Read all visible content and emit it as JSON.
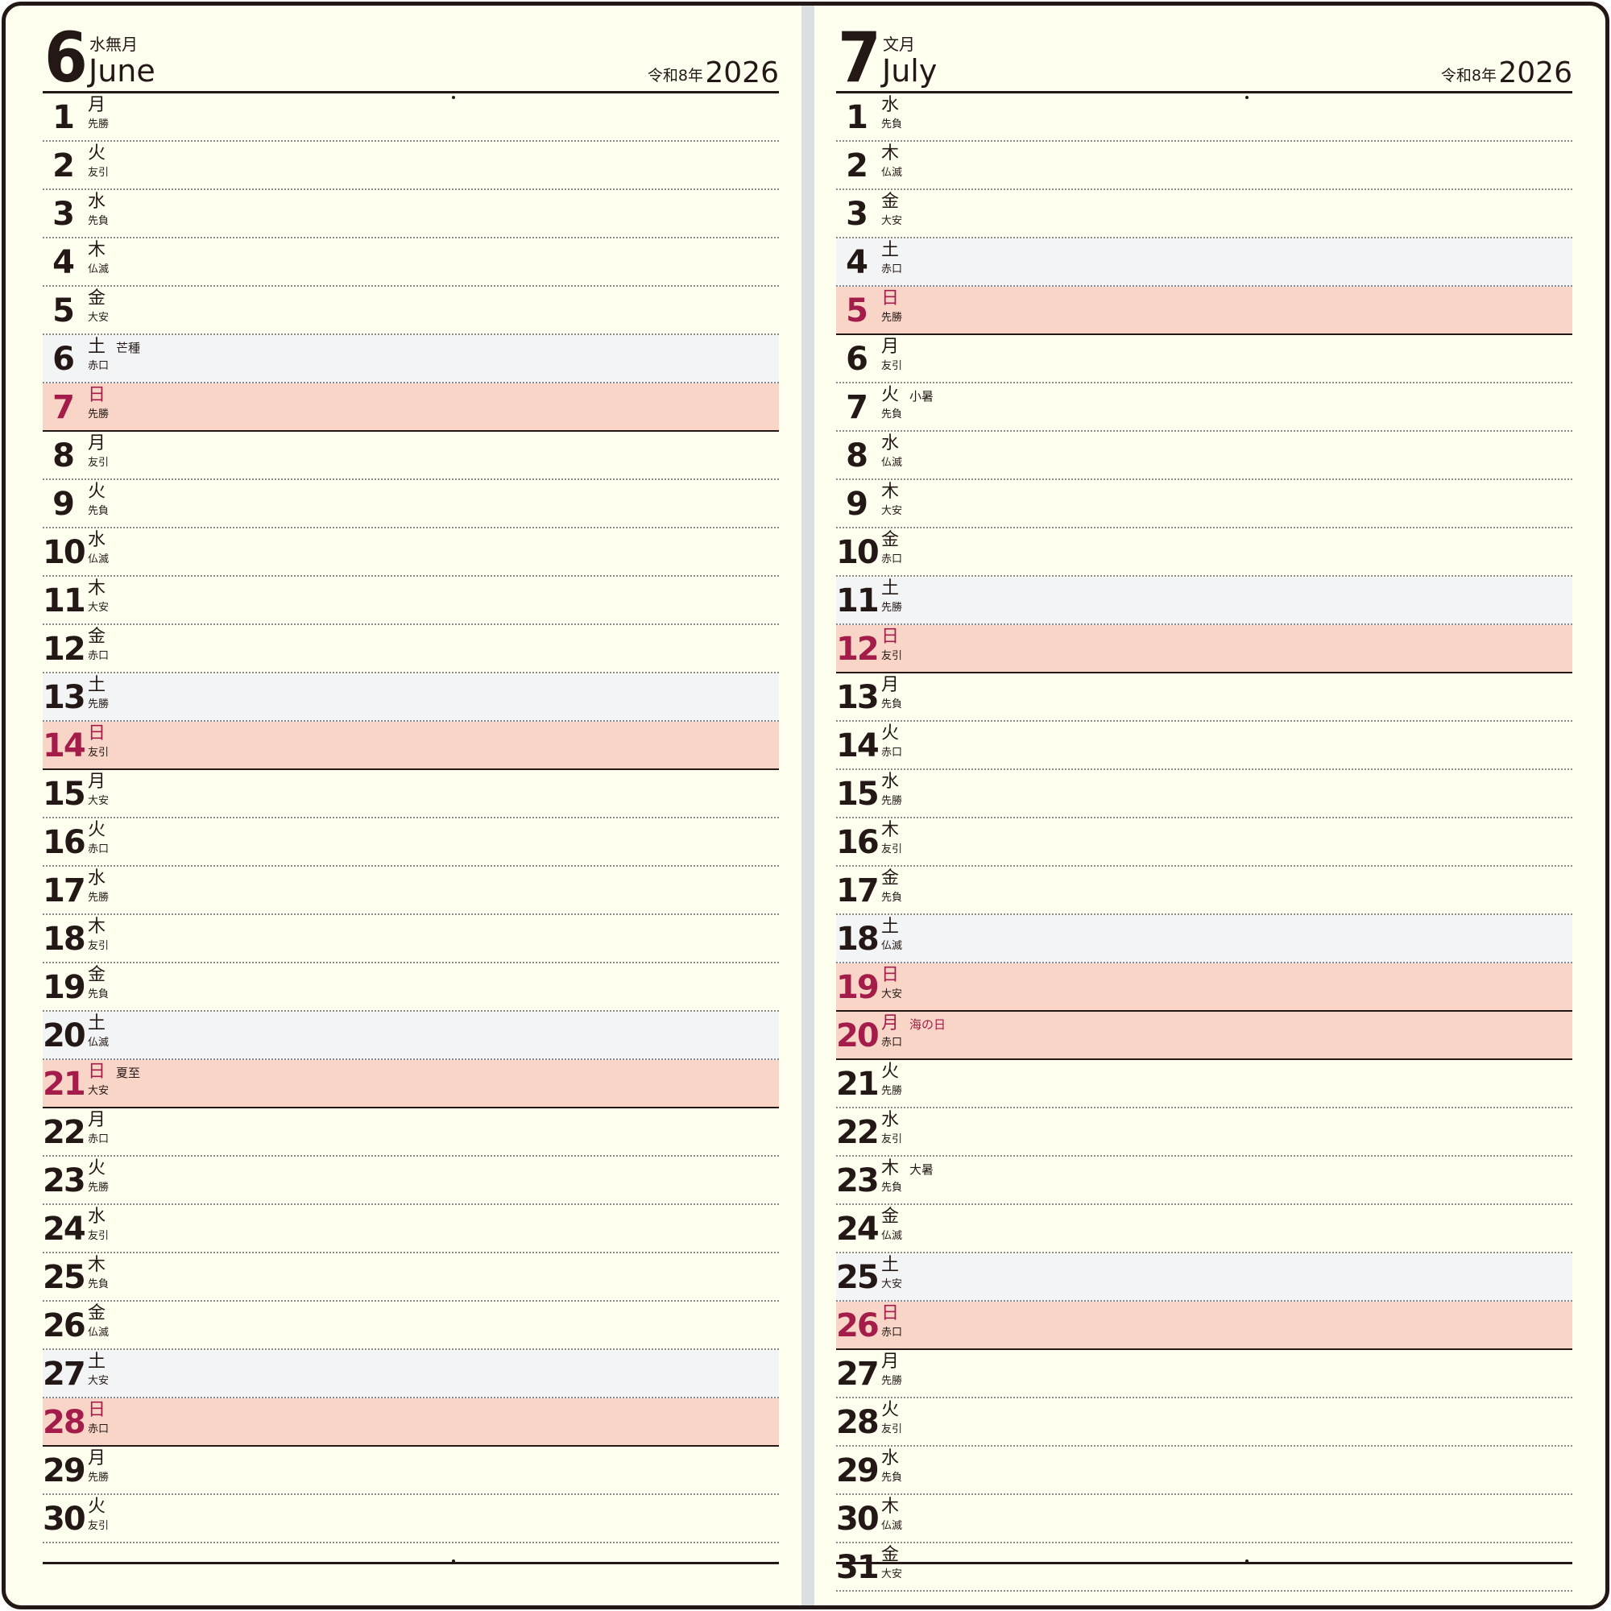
{
  "left": {
    "month_number": "6",
    "month_japanese": "水無月",
    "month_english": "June",
    "era_label": "令和8年",
    "year": "2026",
    "days": [
      {
        "day": "1",
        "weekday": "月",
        "rokuyo": "先勝"
      },
      {
        "day": "2",
        "weekday": "火",
        "rokuyo": "友引"
      },
      {
        "day": "3",
        "weekday": "水",
        "rokuyo": "先負"
      },
      {
        "day": "4",
        "weekday": "木",
        "rokuyo": "仏滅"
      },
      {
        "day": "5",
        "weekday": "金",
        "rokuyo": "大安"
      },
      {
        "day": "6",
        "weekday": "土",
        "rokuyo": "赤口",
        "note": "芒種"
      },
      {
        "day": "7",
        "weekday": "日",
        "rokuyo": "先勝"
      },
      {
        "day": "8",
        "weekday": "月",
        "rokuyo": "友引"
      },
      {
        "day": "9",
        "weekday": "火",
        "rokuyo": "先負"
      },
      {
        "day": "10",
        "weekday": "水",
        "rokuyo": "仏滅"
      },
      {
        "day": "11",
        "weekday": "木",
        "rokuyo": "大安"
      },
      {
        "day": "12",
        "weekday": "金",
        "rokuyo": "赤口"
      },
      {
        "day": "13",
        "weekday": "土",
        "rokuyo": "先勝"
      },
      {
        "day": "14",
        "weekday": "日",
        "rokuyo": "友引"
      },
      {
        "day": "15",
        "weekday": "月",
        "rokuyo": "大安"
      },
      {
        "day": "16",
        "weekday": "火",
        "rokuyo": "赤口"
      },
      {
        "day": "17",
        "weekday": "水",
        "rokuyo": "先勝"
      },
      {
        "day": "18",
        "weekday": "木",
        "rokuyo": "友引"
      },
      {
        "day": "19",
        "weekday": "金",
        "rokuyo": "先負"
      },
      {
        "day": "20",
        "weekday": "土",
        "rokuyo": "仏滅"
      },
      {
        "day": "21",
        "weekday": "日",
        "rokuyo": "大安",
        "note": "夏至"
      },
      {
        "day": "22",
        "weekday": "月",
        "rokuyo": "赤口"
      },
      {
        "day": "23",
        "weekday": "火",
        "rokuyo": "先勝"
      },
      {
        "day": "24",
        "weekday": "水",
        "rokuyo": "友引"
      },
      {
        "day": "25",
        "weekday": "木",
        "rokuyo": "先負"
      },
      {
        "day": "26",
        "weekday": "金",
        "rokuyo": "仏滅"
      },
      {
        "day": "27",
        "weekday": "土",
        "rokuyo": "大安"
      },
      {
        "day": "28",
        "weekday": "日",
        "rokuyo": "赤口"
      },
      {
        "day": "29",
        "weekday": "月",
        "rokuyo": "先勝"
      },
      {
        "day": "30",
        "weekday": "火",
        "rokuyo": "友引"
      }
    ]
  },
  "right": {
    "month_number": "7",
    "month_japanese": "文月",
    "month_english": "July",
    "era_label": "令和8年",
    "year": "2026",
    "days": [
      {
        "day": "1",
        "weekday": "水",
        "rokuyo": "先負"
      },
      {
        "day": "2",
        "weekday": "木",
        "rokuyo": "仏滅"
      },
      {
        "day": "3",
        "weekday": "金",
        "rokuyo": "大安"
      },
      {
        "day": "4",
        "weekday": "土",
        "rokuyo": "赤口"
      },
      {
        "day": "5",
        "weekday": "日",
        "rokuyo": "先勝"
      },
      {
        "day": "6",
        "weekday": "月",
        "rokuyo": "友引"
      },
      {
        "day": "7",
        "weekday": "火",
        "rokuyo": "先負",
        "note": "小暑"
      },
      {
        "day": "8",
        "weekday": "水",
        "rokuyo": "仏滅"
      },
      {
        "day": "9",
        "weekday": "木",
        "rokuyo": "大安"
      },
      {
        "day": "10",
        "weekday": "金",
        "rokuyo": "赤口"
      },
      {
        "day": "11",
        "weekday": "土",
        "rokuyo": "先勝"
      },
      {
        "day": "12",
        "weekday": "日",
        "rokuyo": "友引"
      },
      {
        "day": "13",
        "weekday": "月",
        "rokuyo": "先負"
      },
      {
        "day": "14",
        "weekday": "火",
        "rokuyo": "赤口"
      },
      {
        "day": "15",
        "weekday": "水",
        "rokuyo": "先勝"
      },
      {
        "day": "16",
        "weekday": "木",
        "rokuyo": "友引"
      },
      {
        "day": "17",
        "weekday": "金",
        "rokuyo": "先負"
      },
      {
        "day": "18",
        "weekday": "土",
        "rokuyo": "仏滅"
      },
      {
        "day": "19",
        "weekday": "日",
        "rokuyo": "大安"
      },
      {
        "day": "20",
        "weekday": "月",
        "rokuyo": "赤口",
        "note": "海の日",
        "holiday": true
      },
      {
        "day": "21",
        "weekday": "火",
        "rokuyo": "先勝"
      },
      {
        "day": "22",
        "weekday": "水",
        "rokuyo": "友引"
      },
      {
        "day": "23",
        "weekday": "木",
        "rokuyo": "先負",
        "note": "大暑"
      },
      {
        "day": "24",
        "weekday": "金",
        "rokuyo": "仏滅"
      },
      {
        "day": "25",
        "weekday": "土",
        "rokuyo": "大安"
      },
      {
        "day": "26",
        "weekday": "日",
        "rokuyo": "赤口"
      },
      {
        "day": "27",
        "weekday": "月",
        "rokuyo": "先勝"
      },
      {
        "day": "28",
        "weekday": "火",
        "rokuyo": "友引"
      },
      {
        "day": "29",
        "weekday": "水",
        "rokuyo": "先負"
      },
      {
        "day": "30",
        "weekday": "木",
        "rokuyo": "仏滅"
      },
      {
        "day": "31",
        "weekday": "金",
        "rokuyo": "大安"
      }
    ]
  },
  "colors": {
    "ink": "#231815",
    "paper": "#fffff0",
    "sunday_holiday_text": "#a31c4a",
    "sunday_row_bg": "#f9d5c7",
    "saturday_row_bg": "#f3f4f6",
    "gutter": "#dcdfe2"
  }
}
